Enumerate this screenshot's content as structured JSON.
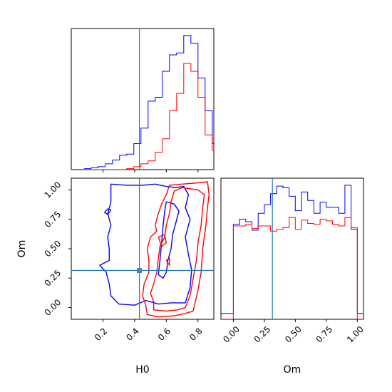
{
  "chart_data": {
    "type": "corner",
    "parameters": [
      "H0",
      "Om"
    ],
    "axis_labels": {
      "x_left": "H0",
      "x_right": "Om",
      "y_left": "Om"
    },
    "truth": {
      "H0": 0.43,
      "Om": 0.315,
      "color": "#1f77b4"
    },
    "series_colors": {
      "blue": "#0000ff",
      "red": "#ff0000"
    },
    "panels": [
      {
        "id": "hist-H0",
        "kind": "histogram",
        "xlim": [
          0.0,
          0.9
        ],
        "x_ticks": [
          0.2,
          0.4,
          0.6,
          0.8
        ],
        "show_tick_labels": false,
        "bin_edges": [
          0.08,
          0.125,
          0.17,
          0.215,
          0.26,
          0.305,
          0.35,
          0.395,
          0.44,
          0.485,
          0.53,
          0.575,
          0.62,
          0.665,
          0.71,
          0.755,
          0.8,
          0.845,
          0.89,
          0.9
        ],
        "blue_counts": [
          1,
          2,
          3,
          6,
          10,
          15,
          16,
          27,
          43,
          71,
          75,
          102,
          119,
          121,
          139,
          131,
          95,
          61,
          27
        ],
        "red_counts": [
          0,
          0,
          0,
          0,
          0,
          0,
          1,
          3,
          6,
          9,
          18,
          32,
          61,
          79,
          110,
          102,
          75,
          36,
          20
        ]
      },
      {
        "id": "contour-H0-Om",
        "kind": "contour",
        "xlim": [
          0.0,
          0.9
        ],
        "ylim": [
          -0.1,
          1.1
        ],
        "x_ticks": [
          0.2,
          0.4,
          0.6,
          0.8
        ],
        "x_tick_labels": [
          "0.2",
          "0.4",
          "0.6",
          "0.8"
        ],
        "y_ticks": [
          0.0,
          0.25,
          0.5,
          0.75,
          1.0
        ],
        "y_tick_labels": [
          "0.00",
          "0.25",
          "0.50",
          "0.75",
          "1.00"
        ],
        "blue_contours": [
          [
            [
              0.25,
              1.05
            ],
            [
              0.35,
              1.04
            ],
            [
              0.45,
              1.04
            ],
            [
              0.53,
              1.05
            ],
            [
              0.6,
              1.03
            ],
            [
              0.66,
              1.02
            ],
            [
              0.71,
              1.03
            ],
            [
              0.74,
              0.96
            ],
            [
              0.72,
              0.85
            ],
            [
              0.75,
              0.75
            ],
            [
              0.72,
              0.6
            ],
            [
              0.74,
              0.45
            ],
            [
              0.76,
              0.32
            ],
            [
              0.75,
              0.17
            ],
            [
              0.72,
              0.04
            ],
            [
              0.63,
              0.04
            ],
            [
              0.55,
              0.03
            ],
            [
              0.47,
              0.06
            ],
            [
              0.4,
              0.02
            ],
            [
              0.3,
              0.03
            ],
            [
              0.25,
              0.1
            ],
            [
              0.24,
              0.2
            ],
            [
              0.22,
              0.3
            ],
            [
              0.18,
              0.36
            ],
            [
              0.24,
              0.4
            ],
            [
              0.24,
              0.5
            ],
            [
              0.23,
              0.6
            ],
            [
              0.25,
              0.7
            ],
            [
              0.23,
              0.8
            ],
            [
              0.25,
              0.9
            ],
            [
              0.25,
              1.05
            ]
          ],
          [
            [
              0.6,
              0.9
            ],
            [
              0.65,
              0.88
            ],
            [
              0.68,
              0.82
            ],
            [
              0.66,
              0.72
            ],
            [
              0.64,
              0.62
            ],
            [
              0.63,
              0.5
            ],
            [
              0.61,
              0.4
            ],
            [
              0.6,
              0.3
            ],
            [
              0.58,
              0.25
            ],
            [
              0.55,
              0.28
            ],
            [
              0.56,
              0.4
            ],
            [
              0.57,
              0.55
            ],
            [
              0.58,
              0.7
            ],
            [
              0.59,
              0.82
            ],
            [
              0.6,
              0.9
            ]
          ],
          [
            [
              0.23,
              0.84
            ],
            [
              0.21,
              0.81
            ],
            [
              0.23,
              0.79
            ],
            [
              0.25,
              0.83
            ],
            [
              0.23,
              0.84
            ]
          ]
        ],
        "red_contours": [
          [
            [
              0.6,
              0.96
            ],
            [
              0.62,
              1.04
            ],
            [
              0.7,
              1.05
            ],
            [
              0.8,
              1.06
            ],
            [
              0.86,
              1.07
            ],
            [
              0.87,
              0.96
            ],
            [
              0.86,
              0.85
            ],
            [
              0.85,
              0.7
            ],
            [
              0.83,
              0.5
            ],
            [
              0.82,
              0.3
            ],
            [
              0.8,
              0.15
            ],
            [
              0.77,
              -0.03
            ],
            [
              0.72,
              -0.05
            ],
            [
              0.65,
              -0.07
            ],
            [
              0.55,
              -0.08
            ],
            [
              0.48,
              -0.06
            ],
            [
              0.47,
              0.02
            ],
            [
              0.45,
              0.1
            ],
            [
              0.46,
              0.2
            ],
            [
              0.49,
              0.3
            ],
            [
              0.49,
              0.4
            ],
            [
              0.48,
              0.5
            ],
            [
              0.5,
              0.6
            ],
            [
              0.54,
              0.65
            ],
            [
              0.53,
              0.7
            ],
            [
              0.55,
              0.8
            ],
            [
              0.57,
              0.88
            ],
            [
              0.6,
              0.96
            ]
          ],
          [
            [
              0.65,
              0.99
            ],
            [
              0.7,
              1.02
            ],
            [
              0.8,
              1.0
            ],
            [
              0.84,
              0.96
            ],
            [
              0.83,
              0.85
            ],
            [
              0.82,
              0.7
            ],
            [
              0.8,
              0.55
            ],
            [
              0.79,
              0.4
            ],
            [
              0.77,
              0.25
            ],
            [
              0.75,
              0.1
            ],
            [
              0.72,
              0.0
            ],
            [
              0.67,
              -0.02
            ],
            [
              0.6,
              -0.03
            ],
            [
              0.52,
              -0.02
            ],
            [
              0.52,
              0.05
            ],
            [
              0.5,
              0.12
            ],
            [
              0.52,
              0.2
            ],
            [
              0.54,
              0.3
            ],
            [
              0.55,
              0.42
            ],
            [
              0.56,
              0.52
            ],
            [
              0.59,
              0.6
            ],
            [
              0.6,
              0.7
            ],
            [
              0.62,
              0.8
            ],
            [
              0.63,
              0.9
            ],
            [
              0.65,
              0.99
            ]
          ],
          [
            [
              0.55,
              0.6
            ],
            [
              0.59,
              0.62
            ],
            [
              0.6,
              0.55
            ],
            [
              0.57,
              0.52
            ],
            [
              0.55,
              0.6
            ]
          ],
          [
            [
              0.6,
              0.4
            ],
            [
              0.62,
              0.42
            ],
            [
              0.62,
              0.36
            ],
            [
              0.6,
              0.4
            ]
          ]
        ]
      },
      {
        "id": "hist-Om",
        "kind": "histogram",
        "xlim": [
          -0.1,
          1.05
        ],
        "x_ticks": [
          0.0,
          0.25,
          0.5,
          0.75,
          1.0
        ],
        "x_tick_labels": [
          "0.00",
          "0.25",
          "0.50",
          "0.75",
          "1.00"
        ],
        "bin_edges": [
          -0.1,
          -0.05,
          0.0,
          0.05,
          0.1,
          0.15,
          0.2,
          0.25,
          0.3,
          0.35,
          0.4,
          0.45,
          0.5,
          0.55,
          0.6,
          0.65,
          0.7,
          0.75,
          0.8,
          0.85,
          0.9,
          0.95,
          1.0,
          1.05
        ],
        "blue_counts": [
          7,
          7,
          112,
          118,
          115,
          105,
          125,
          135,
          148,
          157,
          155,
          145,
          128,
          150,
          140,
          125,
          138,
          132,
          132,
          125,
          158,
          106,
          7
        ],
        "red_counts": [
          0,
          0,
          110,
          110,
          112,
          107,
          110,
          110,
          104,
          106,
          108,
          120,
          106,
          117,
          113,
          112,
          118,
          116,
          112,
          110,
          120,
          108,
          0
        ]
      }
    ]
  }
}
